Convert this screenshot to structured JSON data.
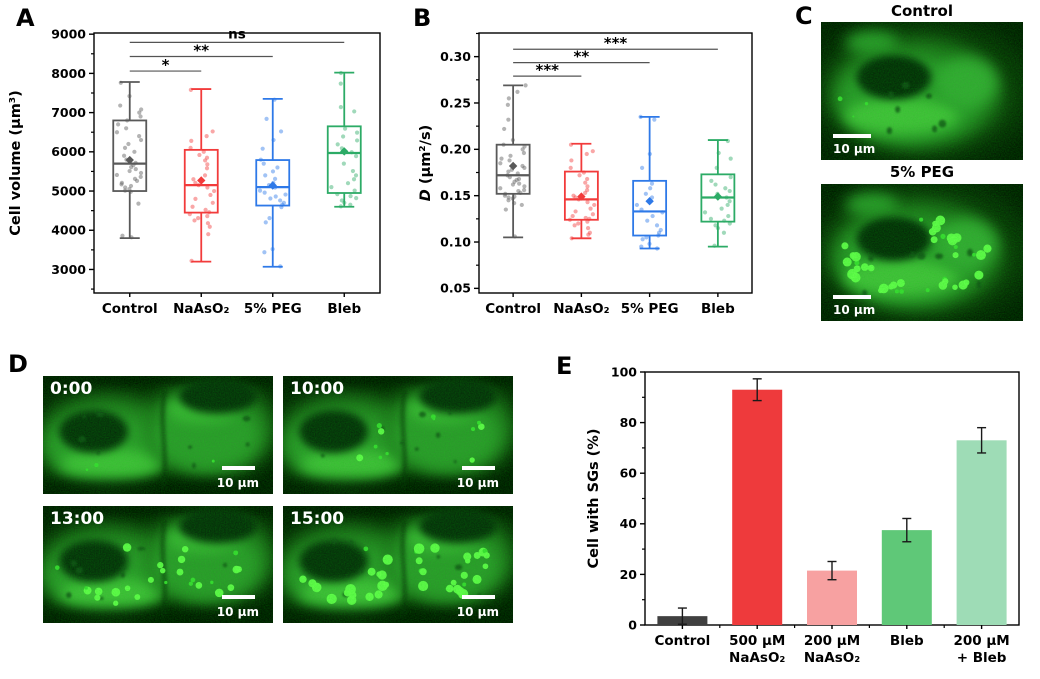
{
  "figure": {
    "panels": {
      "A": {
        "label": "A"
      },
      "B": {
        "label": "B"
      },
      "C": {
        "label": "C",
        "images": [
          {
            "title": "Control",
            "scale_bar": "10 μm",
            "granule_level": 0
          },
          {
            "title": "5% PEG",
            "scale_bar": "10 μm",
            "granule_level": 3
          }
        ]
      },
      "D": {
        "label": "D",
        "images": [
          {
            "timestamp": "0:00",
            "scale_bar": "10 μm",
            "granule_level": 0
          },
          {
            "timestamp": "10:00",
            "scale_bar": "10 μm",
            "granule_level": 1
          },
          {
            "timestamp": "13:00",
            "scale_bar": "10 μm",
            "granule_level": 2
          },
          {
            "timestamp": "15:00",
            "scale_bar": "10 μm",
            "granule_level": 3
          }
        ]
      },
      "E": {
        "label": "E"
      }
    }
  },
  "chart_data": [
    {
      "type": "box",
      "panel": "A",
      "ylabel_italic": "",
      "ylabel": "Cell volume (μm³)",
      "ylim": [
        2400,
        9030
      ],
      "yticks": [
        3000,
        4000,
        5000,
        6000,
        7000,
        8000,
        9000
      ],
      "minor_step": 500,
      "tick_decimals": 0,
      "categories": [
        "Control",
        "NaAsO₂",
        "5% PEG",
        "Bleb"
      ],
      "series": [
        {
          "name": "Control",
          "color": "#595959",
          "whisker_low": 3800,
          "q1": 5000,
          "median": 5700,
          "q3": 6800,
          "whisker_high": 7780,
          "mean": 5790,
          "points": [
            3820,
            3860,
            4680,
            4980,
            5010,
            5050,
            5090,
            5130,
            5170,
            5210,
            5260,
            5310,
            5360,
            5410,
            5460,
            5510,
            5560,
            5610,
            5660,
            5720,
            5800,
            5900,
            6000,
            6100,
            6200,
            6300,
            6400,
            6500,
            6600,
            6700,
            6800,
            6900,
            7000,
            7080,
            7180,
            7420,
            7760
          ]
        },
        {
          "name": "NaAsO₂",
          "color": "#f23b3b",
          "whisker_low": 3200,
          "q1": 4450,
          "median": 5150,
          "q3": 6050,
          "whisker_high": 7600,
          "mean": 5270,
          "points": [
            3220,
            3900,
            4090,
            4180,
            4250,
            4310,
            4360,
            4410,
            4460,
            4520,
            4600,
            4700,
            4800,
            4900,
            5000,
            5090,
            5150,
            5210,
            5300,
            5400,
            5580,
            5680,
            5780,
            5850,
            5920,
            6000,
            6100,
            6280,
            6400,
            6520,
            7580
          ]
        },
        {
          "name": "5% PEG",
          "color": "#2e79e8",
          "whisker_low": 3070,
          "q1": 4630,
          "median": 5100,
          "q3": 5790,
          "whisker_high": 7350,
          "mean": 5140,
          "points": [
            3080,
            3440,
            3520,
            4200,
            4310,
            4590,
            4650,
            4700,
            4760,
            4810,
            4860,
            4910,
            4960,
            5010,
            5090,
            5150,
            5210,
            5310,
            5400,
            5500,
            5600,
            5700,
            5800,
            6080,
            6300,
            6520,
            6840,
            7330
          ]
        },
        {
          "name": "Bleb",
          "color": "#2cab66",
          "whisker_low": 4600,
          "q1": 4950,
          "median": 5970,
          "q3": 6650,
          "whisker_high": 8020,
          "mean": 6010,
          "points": [
            4610,
            4650,
            4700,
            4760,
            4820,
            4870,
            4920,
            5010,
            5100,
            5200,
            5300,
            5400,
            5510,
            5700,
            5890,
            5990,
            6090,
            6190,
            6290,
            6390,
            6490,
            6590,
            7030,
            7140,
            7740,
            8010
          ]
        }
      ],
      "significance": [
        {
          "from": 0,
          "to": 1,
          "label": "*",
          "value": 8060
        },
        {
          "from": 0,
          "to": 2,
          "label": "**",
          "value": 8430
        },
        {
          "from": 0,
          "to": 3,
          "label": "ns",
          "value": 8790
        }
      ]
    },
    {
      "type": "box",
      "panel": "B",
      "ylabel_italic": "D",
      "ylabel": " (μm²/s)",
      "ylim": [
        0.045,
        0.3255
      ],
      "yticks": [
        0.05,
        0.1,
        0.15,
        0.2,
        0.25,
        0.3
      ],
      "minor_step": 0.025,
      "tick_decimals": 2,
      "categories": [
        "Control",
        "NaAsO₂",
        "5% PEG",
        "Bleb"
      ],
      "series": [
        {
          "name": "Control",
          "color": "#595959",
          "whisker_low": 0.105,
          "q1": 0.152,
          "median": 0.172,
          "q3": 0.205,
          "whisker_high": 0.269,
          "mean": 0.182,
          "points": [
            0.106,
            0.135,
            0.14,
            0.142,
            0.145,
            0.147,
            0.148,
            0.149,
            0.15,
            0.152,
            0.153,
            0.155,
            0.156,
            0.158,
            0.16,
            0.162,
            0.163,
            0.165,
            0.167,
            0.168,
            0.17,
            0.172,
            0.174,
            0.176,
            0.178,
            0.18,
            0.182,
            0.185,
            0.188,
            0.19,
            0.193,
            0.196,
            0.2,
            0.203,
            0.205,
            0.21,
            0.222,
            0.232,
            0.248,
            0.255,
            0.262,
            0.269
          ]
        },
        {
          "name": "NaAsO₂",
          "color": "#f23b3b",
          "whisker_low": 0.104,
          "q1": 0.124,
          "median": 0.146,
          "q3": 0.176,
          "whisker_high": 0.206,
          "mean": 0.149,
          "points": [
            0.104,
            0.108,
            0.11,
            0.115,
            0.118,
            0.12,
            0.122,
            0.124,
            0.125,
            0.126,
            0.128,
            0.13,
            0.133,
            0.136,
            0.14,
            0.143,
            0.146,
            0.148,
            0.15,
            0.153,
            0.156,
            0.16,
            0.164,
            0.168,
            0.172,
            0.175,
            0.18,
            0.188,
            0.195,
            0.198,
            0.205
          ]
        },
        {
          "name": "5% PEG",
          "color": "#2e79e8",
          "whisker_low": 0.093,
          "q1": 0.107,
          "median": 0.133,
          "q3": 0.166,
          "whisker_high": 0.235,
          "mean": 0.144,
          "points": [
            0.093,
            0.095,
            0.098,
            0.103,
            0.105,
            0.107,
            0.11,
            0.113,
            0.118,
            0.123,
            0.128,
            0.132,
            0.135,
            0.14,
            0.148,
            0.152,
            0.158,
            0.163,
            0.18,
            0.195,
            0.232,
            0.235
          ]
        },
        {
          "name": "Bleb",
          "color": "#2cab66",
          "whisker_low": 0.095,
          "q1": 0.122,
          "median": 0.148,
          "q3": 0.173,
          "whisker_high": 0.21,
          "mean": 0.149,
          "points": [
            0.096,
            0.11,
            0.115,
            0.118,
            0.12,
            0.123,
            0.125,
            0.128,
            0.132,
            0.136,
            0.14,
            0.144,
            0.148,
            0.152,
            0.155,
            0.158,
            0.162,
            0.166,
            0.17,
            0.18,
            0.19,
            0.196,
            0.209
          ]
        }
      ],
      "significance": [
        {
          "from": 0,
          "to": 1,
          "label": "***",
          "value": 0.279
        },
        {
          "from": 0,
          "to": 2,
          "label": "**",
          "value": 0.2935
        },
        {
          "from": 0,
          "to": 3,
          "label": "***",
          "value": 0.308
        }
      ]
    },
    {
      "type": "bar",
      "panel": "E",
      "ylabel_italic": "",
      "ylabel": "Cell with SGs (%)",
      "ylim": [
        0,
        100
      ],
      "yticks": [
        0,
        20,
        40,
        60,
        80,
        100
      ],
      "minor_step": 10,
      "tick_decimals": 0,
      "categories": [
        [
          "Control"
        ],
        [
          "500 μM",
          "NaAsO₂"
        ],
        [
          "200 μM",
          "NaAsO₂"
        ],
        [
          "Bleb"
        ],
        [
          "200 μM",
          "+ Bleb"
        ]
      ],
      "values": [
        3.5,
        93,
        21.5,
        37.5,
        73
      ],
      "errors": [
        3.2,
        4.3,
        3.6,
        4.6,
        5.0
      ],
      "colors": [
        "#404040",
        "#ee3a3c",
        "#f7a1a1",
        "#5fc878",
        "#9edcb6"
      ]
    }
  ]
}
